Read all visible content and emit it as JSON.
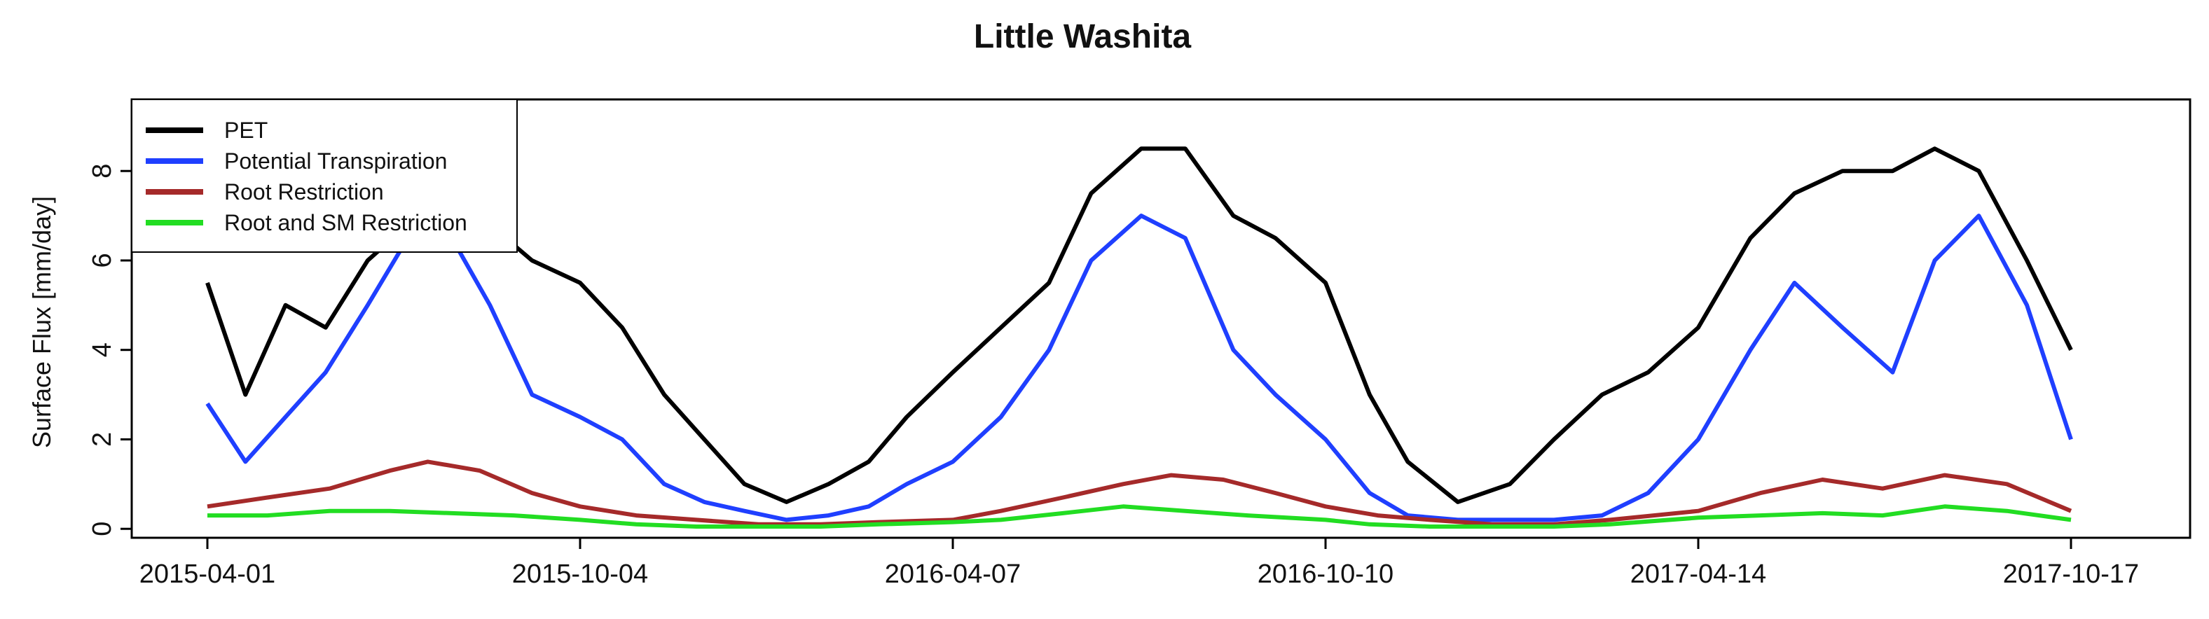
{
  "chart_data": {
    "type": "line",
    "title": "Little Washita",
    "xlabel": "",
    "ylabel": "Surface Flux [mm/day]",
    "x_range": [
      "2015-04-01",
      "2017-10-17"
    ],
    "x_ticks": [
      "2015-04-01",
      "2015-10-04",
      "2016-04-07",
      "2016-10-10",
      "2017-04-14",
      "2017-10-17"
    ],
    "ylim": [
      -0.2,
      9.6
    ],
    "y_ticks": [
      "0",
      "2",
      "4",
      "6",
      "8"
    ],
    "grid": false,
    "legend_position": "top-left",
    "series": [
      {
        "name": "PET",
        "color": "#000000",
        "points": [
          [
            "2015-04-01",
            5.5
          ],
          [
            "2015-04-20",
            3.0
          ],
          [
            "2015-05-10",
            5.0
          ],
          [
            "2015-05-30",
            4.5
          ],
          [
            "2015-06-20",
            6.0
          ],
          [
            "2015-07-10",
            6.8
          ],
          [
            "2015-08-01",
            7.0
          ],
          [
            "2015-08-20",
            6.8
          ],
          [
            "2015-09-10",
            6.0
          ],
          [
            "2015-10-04",
            5.5
          ],
          [
            "2015-10-25",
            4.5
          ],
          [
            "2015-11-15",
            3.0
          ],
          [
            "2015-12-05",
            2.0
          ],
          [
            "2015-12-25",
            1.0
          ],
          [
            "2016-01-15",
            0.6
          ],
          [
            "2016-02-05",
            1.0
          ],
          [
            "2016-02-25",
            1.5
          ],
          [
            "2016-03-15",
            2.5
          ],
          [
            "2016-04-07",
            3.5
          ],
          [
            "2016-05-01",
            4.5
          ],
          [
            "2016-05-25",
            5.5
          ],
          [
            "2016-06-15",
            7.5
          ],
          [
            "2016-07-10",
            8.5
          ],
          [
            "2016-08-01",
            8.5
          ],
          [
            "2016-08-25",
            7.0
          ],
          [
            "2016-09-15",
            6.5
          ],
          [
            "2016-10-10",
            5.5
          ],
          [
            "2016-11-01",
            3.0
          ],
          [
            "2016-11-20",
            1.5
          ],
          [
            "2016-12-15",
            0.6
          ],
          [
            "2017-01-10",
            1.0
          ],
          [
            "2017-02-01",
            2.0
          ],
          [
            "2017-02-25",
            3.0
          ],
          [
            "2017-03-20",
            3.5
          ],
          [
            "2017-04-14",
            4.5
          ],
          [
            "2017-05-10",
            6.5
          ],
          [
            "2017-06-01",
            7.5
          ],
          [
            "2017-06-25",
            8.0
          ],
          [
            "2017-07-20",
            8.0
          ],
          [
            "2017-08-10",
            8.5
          ],
          [
            "2017-09-01",
            8.0
          ],
          [
            "2017-09-25",
            6.0
          ],
          [
            "2017-10-17",
            4.0
          ]
        ]
      },
      {
        "name": "Potential Transpiration",
        "color": "#1f3fff",
        "points": [
          [
            "2015-04-01",
            2.8
          ],
          [
            "2015-04-20",
            1.5
          ],
          [
            "2015-05-10",
            2.5
          ],
          [
            "2015-05-30",
            3.5
          ],
          [
            "2015-06-20",
            5.0
          ],
          [
            "2015-07-10",
            6.5
          ],
          [
            "2015-08-01",
            6.5
          ],
          [
            "2015-08-20",
            5.0
          ],
          [
            "2015-09-10",
            3.0
          ],
          [
            "2015-10-04",
            2.5
          ],
          [
            "2015-10-25",
            2.0
          ],
          [
            "2015-11-15",
            1.0
          ],
          [
            "2015-12-05",
            0.6
          ],
          [
            "2015-12-25",
            0.4
          ],
          [
            "2016-01-15",
            0.2
          ],
          [
            "2016-02-05",
            0.3
          ],
          [
            "2016-02-25",
            0.5
          ],
          [
            "2016-03-15",
            1.0
          ],
          [
            "2016-04-07",
            1.5
          ],
          [
            "2016-05-01",
            2.5
          ],
          [
            "2016-05-25",
            4.0
          ],
          [
            "2016-06-15",
            6.0
          ],
          [
            "2016-07-10",
            7.0
          ],
          [
            "2016-08-01",
            6.5
          ],
          [
            "2016-08-25",
            4.0
          ],
          [
            "2016-09-15",
            3.0
          ],
          [
            "2016-10-10",
            2.0
          ],
          [
            "2016-11-01",
            0.8
          ],
          [
            "2016-11-20",
            0.3
          ],
          [
            "2016-12-15",
            0.2
          ],
          [
            "2017-01-10",
            0.2
          ],
          [
            "2017-02-01",
            0.2
          ],
          [
            "2017-02-25",
            0.3
          ],
          [
            "2017-03-20",
            0.8
          ],
          [
            "2017-04-14",
            2.0
          ],
          [
            "2017-05-10",
            4.0
          ],
          [
            "2017-06-01",
            5.5
          ],
          [
            "2017-06-25",
            4.5
          ],
          [
            "2017-07-20",
            3.5
          ],
          [
            "2017-08-10",
            6.0
          ],
          [
            "2017-09-01",
            7.0
          ],
          [
            "2017-09-25",
            5.0
          ],
          [
            "2017-10-17",
            2.0
          ]
        ]
      },
      {
        "name": "Root Restriction",
        "color": "#a52a2a",
        "points": [
          [
            "2015-04-01",
            0.5
          ],
          [
            "2015-05-01",
            0.7
          ],
          [
            "2015-06-01",
            0.9
          ],
          [
            "2015-07-01",
            1.3
          ],
          [
            "2015-07-20",
            1.5
          ],
          [
            "2015-08-15",
            1.3
          ],
          [
            "2015-09-10",
            0.8
          ],
          [
            "2015-10-04",
            0.5
          ],
          [
            "2015-11-01",
            0.3
          ],
          [
            "2015-12-01",
            0.2
          ],
          [
            "2016-01-01",
            0.1
          ],
          [
            "2016-02-01",
            0.1
          ],
          [
            "2016-03-01",
            0.15
          ],
          [
            "2016-04-07",
            0.2
          ],
          [
            "2016-05-01",
            0.4
          ],
          [
            "2016-06-01",
            0.7
          ],
          [
            "2016-07-01",
            1.0
          ],
          [
            "2016-07-25",
            1.2
          ],
          [
            "2016-08-20",
            1.1
          ],
          [
            "2016-09-15",
            0.8
          ],
          [
            "2016-10-10",
            0.5
          ],
          [
            "2016-11-05",
            0.3
          ],
          [
            "2016-12-01",
            0.2
          ],
          [
            "2017-01-01",
            0.1
          ],
          [
            "2017-02-01",
            0.1
          ],
          [
            "2017-03-01",
            0.2
          ],
          [
            "2017-04-14",
            0.4
          ],
          [
            "2017-05-15",
            0.8
          ],
          [
            "2017-06-15",
            1.1
          ],
          [
            "2017-07-15",
            0.9
          ],
          [
            "2017-08-15",
            1.2
          ],
          [
            "2017-09-15",
            1.0
          ],
          [
            "2017-10-17",
            0.4
          ]
        ]
      },
      {
        "name": "Root and SM Restriction",
        "color": "#22dd22",
        "points": [
          [
            "2015-04-01",
            0.3
          ],
          [
            "2015-05-01",
            0.3
          ],
          [
            "2015-06-01",
            0.4
          ],
          [
            "2015-07-01",
            0.4
          ],
          [
            "2015-08-01",
            0.35
          ],
          [
            "2015-09-01",
            0.3
          ],
          [
            "2015-10-04",
            0.2
          ],
          [
            "2015-11-01",
            0.1
          ],
          [
            "2015-12-01",
            0.05
          ],
          [
            "2016-01-01",
            0.05
          ],
          [
            "2016-02-01",
            0.05
          ],
          [
            "2016-03-01",
            0.1
          ],
          [
            "2016-04-07",
            0.15
          ],
          [
            "2016-05-01",
            0.2
          ],
          [
            "2016-06-01",
            0.35
          ],
          [
            "2016-07-01",
            0.5
          ],
          [
            "2016-08-01",
            0.4
          ],
          [
            "2016-09-01",
            0.3
          ],
          [
            "2016-10-10",
            0.2
          ],
          [
            "2016-11-01",
            0.1
          ],
          [
            "2016-12-01",
            0.05
          ],
          [
            "2017-01-01",
            0.05
          ],
          [
            "2017-02-01",
            0.05
          ],
          [
            "2017-03-01",
            0.1
          ],
          [
            "2017-04-14",
            0.25
          ],
          [
            "2017-05-15",
            0.3
          ],
          [
            "2017-06-15",
            0.35
          ],
          [
            "2017-07-15",
            0.3
          ],
          [
            "2017-08-15",
            0.5
          ],
          [
            "2017-09-15",
            0.4
          ],
          [
            "2017-10-17",
            0.2
          ]
        ]
      }
    ]
  }
}
